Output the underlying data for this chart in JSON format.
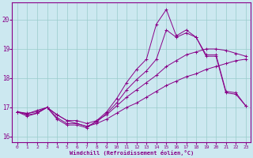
{
  "title": "",
  "xlabel": "Windchill (Refroidissement éolien,°C)",
  "ylabel": "",
  "xlim": [
    -0.5,
    23.5
  ],
  "ylim": [
    15.8,
    20.6
  ],
  "yticks": [
    16,
    17,
    18,
    19,
    20
  ],
  "xticks": [
    0,
    1,
    2,
    3,
    4,
    5,
    6,
    7,
    8,
    9,
    10,
    11,
    12,
    13,
    14,
    15,
    16,
    17,
    18,
    19,
    20,
    21,
    22,
    23
  ],
  "bg_color": "#cce8f0",
  "line_color": "#880088",
  "grid_color": "#99cccc",
  "series": {
    "line1": {
      "x": [
        0,
        1,
        2,
        3,
        4,
        5,
        6,
        7,
        8,
        9,
        10,
        11,
        12,
        13,
        14,
        15,
        16,
        17,
        18,
        19,
        20,
        21,
        22,
        23
      ],
      "y": [
        16.85,
        16.8,
        16.85,
        17.0,
        16.75,
        16.55,
        16.45,
        16.35,
        16.45,
        16.6,
        16.8,
        17.0,
        17.15,
        17.35,
        17.55,
        17.75,
        17.9,
        18.05,
        18.15,
        18.3,
        18.4,
        18.5,
        18.6,
        18.65
      ]
    },
    "line2": {
      "x": [
        0,
        1,
        2,
        3,
        4,
        5,
        6,
        7,
        8,
        9,
        10,
        11,
        12,
        13,
        14,
        15,
        16,
        17,
        18,
        19,
        20,
        21,
        22,
        23
      ],
      "y": [
        16.85,
        16.78,
        16.9,
        17.0,
        16.75,
        16.55,
        16.55,
        16.45,
        16.55,
        16.75,
        17.05,
        17.35,
        17.6,
        17.85,
        18.1,
        18.4,
        18.6,
        18.8,
        18.9,
        19.0,
        19.0,
        18.95,
        18.85,
        18.75
      ]
    },
    "line3": {
      "x": [
        0,
        1,
        2,
        3,
        4,
        5,
        6,
        7,
        8,
        9,
        10,
        11,
        12,
        13,
        14,
        15,
        16,
        17,
        18,
        19,
        20,
        21,
        22,
        23
      ],
      "y": [
        16.85,
        16.75,
        16.8,
        17.0,
        16.65,
        16.45,
        16.45,
        16.35,
        16.5,
        16.8,
        17.15,
        17.6,
        17.95,
        18.25,
        18.65,
        19.65,
        19.4,
        19.55,
        19.4,
        18.8,
        18.8,
        17.55,
        17.5,
        17.05
      ]
    },
    "line4": {
      "x": [
        0,
        1,
        2,
        3,
        4,
        5,
        6,
        7,
        8,
        9,
        10,
        11,
        12,
        13,
        14,
        15,
        16,
        17,
        18,
        19,
        20,
        21,
        22,
        23
      ],
      "y": [
        16.85,
        16.7,
        16.8,
        17.0,
        16.6,
        16.4,
        16.4,
        16.3,
        16.55,
        16.85,
        17.3,
        17.85,
        18.3,
        18.65,
        19.85,
        20.35,
        19.45,
        19.65,
        19.4,
        18.75,
        18.75,
        17.5,
        17.45,
        17.05
      ]
    }
  }
}
